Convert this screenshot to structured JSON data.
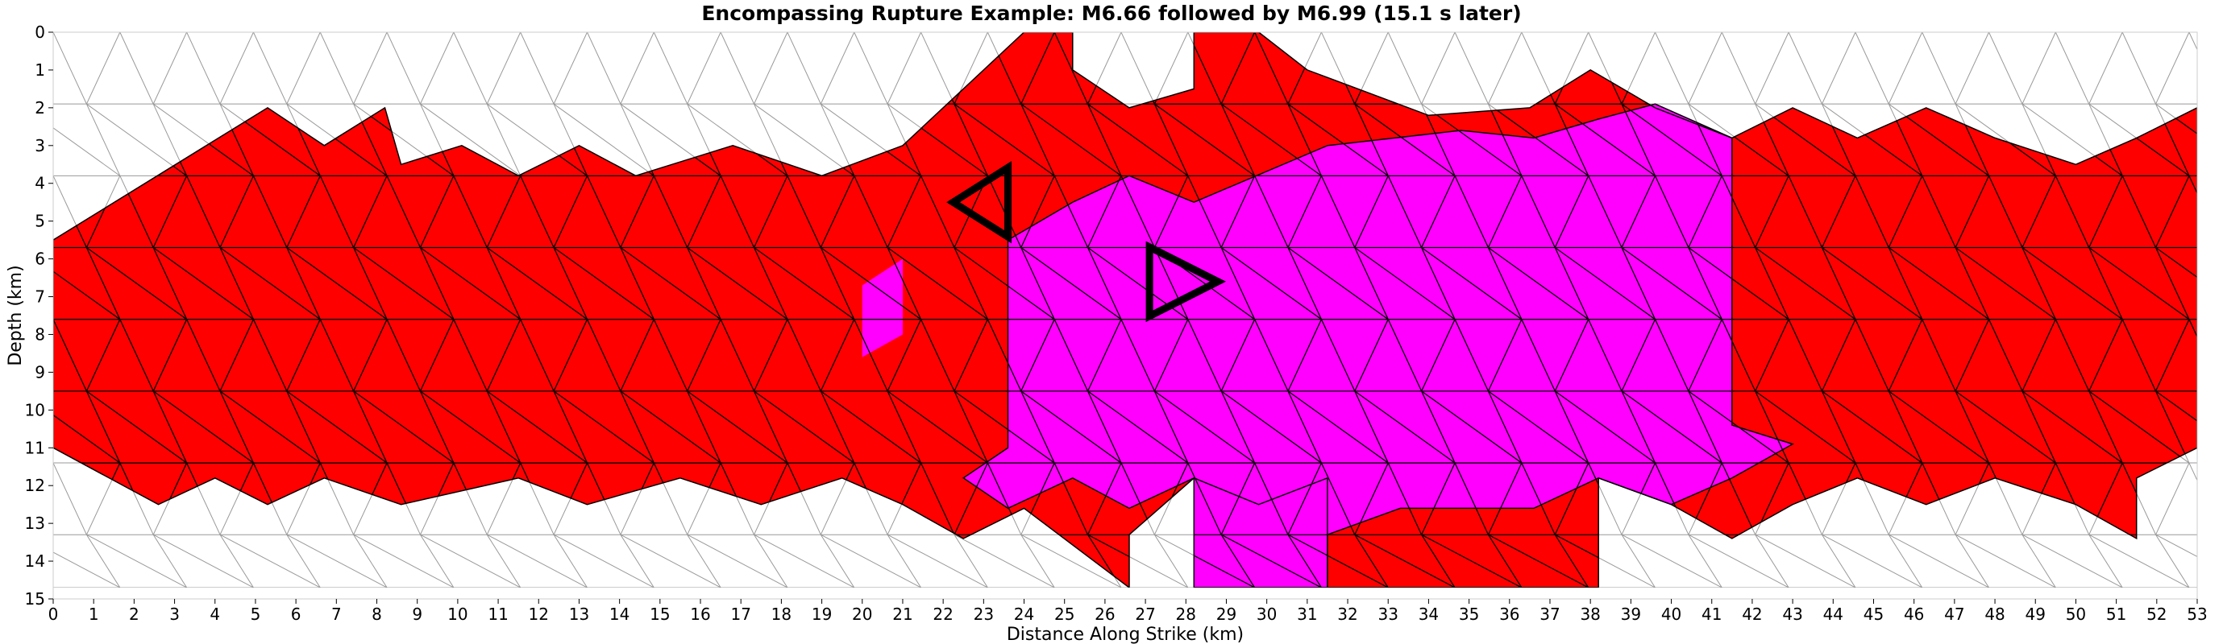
{
  "chart_data": {
    "type": "heatmap",
    "title": "Encompassing Rupture Example: M6.66 followed by M6.99 (15.1 s later)",
    "xlabel": "Distance Along Strike (km)",
    "ylabel": "Depth (km)",
    "xlim": [
      0,
      53
    ],
    "ylim": [
      15,
      0
    ],
    "xticks": [
      0,
      1,
      2,
      3,
      4,
      5,
      6,
      7,
      8,
      9,
      10,
      11,
      12,
      13,
      14,
      15,
      16,
      17,
      18,
      19,
      20,
      21,
      22,
      23,
      24,
      25,
      26,
      27,
      28,
      29,
      30,
      31,
      32,
      33,
      34,
      35,
      36,
      37,
      38,
      39,
      40,
      41,
      42,
      43,
      44,
      45,
      46,
      47,
      48,
      49,
      50,
      51,
      52,
      53
    ],
    "yticks": [
      0,
      1,
      2,
      3,
      4,
      5,
      6,
      7,
      8,
      9,
      10,
      11,
      12,
      13,
      14,
      15
    ],
    "mesh": {
      "node_spacing_km": 1.65,
      "node_rows_depth_km": [
        0,
        1.9,
        3.8,
        5.7,
        7.6,
        9.5,
        11.4,
        13.3,
        14.7
      ]
    },
    "colors": {
      "first_rupture": "#ff0000",
      "second_rupture": "#ff00ff",
      "unruptured": "#ffffff",
      "ruptured_edge": "#000000",
      "mesh_edge": "#999999"
    },
    "series": [
      {
        "name": "M6.66",
        "color": "#ff0000",
        "region_vertices_km": [
          [
            0,
            5.5
          ],
          [
            5.3,
            2.0
          ],
          [
            6.7,
            3.0
          ],
          [
            8.2,
            2.0
          ],
          [
            8.6,
            3.5
          ],
          [
            10.1,
            3.0
          ],
          [
            11.5,
            3.8
          ],
          [
            13.0,
            3.0
          ],
          [
            14.4,
            3.8
          ],
          [
            16.8,
            3.0
          ],
          [
            19.0,
            3.8
          ],
          [
            21.0,
            3.0
          ],
          [
            24.0,
            0
          ],
          [
            25.2,
            0
          ],
          [
            25.2,
            1.0
          ],
          [
            26.6,
            2.0
          ],
          [
            28.2,
            1.5
          ],
          [
            28.2,
            0
          ],
          [
            29.8,
            0
          ],
          [
            31.0,
            1.0
          ],
          [
            34.0,
            2.2
          ],
          [
            36.5,
            2.0
          ],
          [
            38.0,
            1.0
          ],
          [
            39.6,
            2.0
          ],
          [
            41.5,
            2.8
          ],
          [
            43.0,
            2.0
          ],
          [
            44.6,
            2.8
          ],
          [
            46.3,
            2.0
          ],
          [
            48.0,
            2.8
          ],
          [
            50.0,
            3.5
          ],
          [
            51.5,
            2.8
          ],
          [
            53.0,
            2.0
          ],
          [
            53.0,
            11.0
          ],
          [
            51.5,
            11.8
          ],
          [
            51.5,
            13.4
          ],
          [
            50.0,
            12.5
          ],
          [
            48.0,
            11.8
          ],
          [
            46.3,
            12.5
          ],
          [
            44.6,
            11.8
          ],
          [
            43.0,
            12.5
          ],
          [
            41.5,
            13.4
          ],
          [
            40.0,
            12.5
          ],
          [
            38.2,
            11.8
          ],
          [
            38.2,
            14.7
          ],
          [
            31.5,
            14.7
          ],
          [
            31.5,
            11.8
          ],
          [
            29.8,
            12.5
          ],
          [
            28.2,
            11.8
          ],
          [
            26.6,
            13.3
          ],
          [
            26.6,
            14.7
          ],
          [
            24.0,
            12.6
          ],
          [
            22.5,
            13.4
          ],
          [
            21.0,
            12.5
          ],
          [
            19.5,
            11.8
          ],
          [
            17.5,
            12.5
          ],
          [
            15.5,
            11.8
          ],
          [
            13.2,
            12.5
          ],
          [
            11.5,
            11.8
          ],
          [
            8.6,
            12.5
          ],
          [
            6.7,
            11.8
          ],
          [
            5.3,
            12.5
          ],
          [
            4.0,
            11.8
          ],
          [
            2.6,
            12.5
          ],
          [
            0,
            11.0
          ]
        ]
      },
      {
        "name": "M6.99",
        "color": "#ff00ff",
        "region_vertices_km": [
          [
            23.6,
            5.5
          ],
          [
            25.2,
            4.5
          ],
          [
            26.6,
            3.8
          ],
          [
            28.2,
            4.5
          ],
          [
            31.5,
            3.0
          ],
          [
            34.8,
            2.6
          ],
          [
            36.6,
            2.8
          ],
          [
            38.2,
            2.3
          ],
          [
            39.6,
            1.9
          ],
          [
            41.5,
            2.8
          ],
          [
            41.5,
            10.4
          ],
          [
            43.0,
            10.9
          ],
          [
            41.5,
            11.8
          ],
          [
            40.0,
            12.5
          ],
          [
            38.2,
            11.8
          ],
          [
            36.6,
            12.6
          ],
          [
            33.3,
            12.6
          ],
          [
            31.5,
            13.3
          ],
          [
            31.5,
            14.7
          ],
          [
            28.2,
            14.7
          ],
          [
            28.2,
            11.8
          ],
          [
            26.6,
            12.6
          ],
          [
            25.2,
            11.8
          ],
          [
            23.6,
            12.6
          ],
          [
            22.5,
            11.8
          ],
          [
            23.6,
            11.0
          ]
        ],
        "extra_patch_km": [
          [
            20.0,
            6.7
          ],
          [
            21.0,
            6.0
          ],
          [
            21.0,
            8.0
          ],
          [
            20.0,
            8.6
          ]
        ]
      }
    ],
    "hypocenters": [
      {
        "name": "M6.66 hypocenter",
        "orientation": "left",
        "x": 23.6,
        "depth": 4.5
      },
      {
        "name": "M6.99 hypocenter",
        "orientation": "right",
        "x": 27.1,
        "depth": 6.6
      }
    ],
    "legend": "none",
    "grid": false
  }
}
